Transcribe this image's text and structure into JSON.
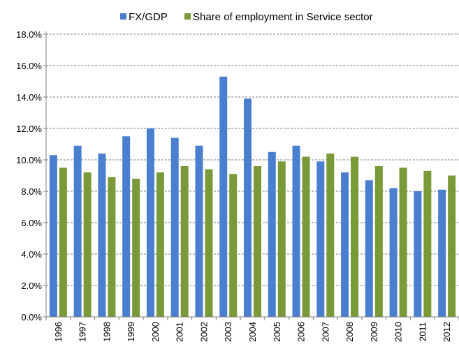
{
  "chart_data": {
    "type": "bar",
    "categories": [
      "1996",
      "1997",
      "1998",
      "1999",
      "2000",
      "2001",
      "2002",
      "2003",
      "2004",
      "2005",
      "2006",
      "2007",
      "2008",
      "2009",
      "2010",
      "2011",
      "2012"
    ],
    "series": [
      {
        "name": "FX/GDP",
        "color": "#4a7fd0",
        "values": [
          10.3,
          10.9,
          10.4,
          11.5,
          12.0,
          11.4,
          10.9,
          15.3,
          13.9,
          10.5,
          10.9,
          9.9,
          9.2,
          8.7,
          8.2,
          8.0,
          8.1
        ]
      },
      {
        "name": "Share of employment in Service sector",
        "color": "#7a9a3a",
        "values": [
          9.5,
          9.2,
          8.9,
          8.8,
          9.2,
          9.6,
          9.4,
          9.1,
          9.6,
          9.9,
          10.2,
          10.4,
          10.2,
          9.6,
          9.5,
          9.3,
          9.0
        ]
      }
    ],
    "ylim": [
      0,
      18
    ],
    "yticks": [
      "0.0%",
      "2.0%",
      "4.0%",
      "6.0%",
      "8.0%",
      "10.0%",
      "12.0%",
      "14.0%",
      "16.0%",
      "18.0%"
    ],
    "ytick_values": [
      0,
      2,
      4,
      6,
      8,
      10,
      12,
      14,
      16,
      18
    ],
    "grid": true,
    "legend": "top"
  }
}
